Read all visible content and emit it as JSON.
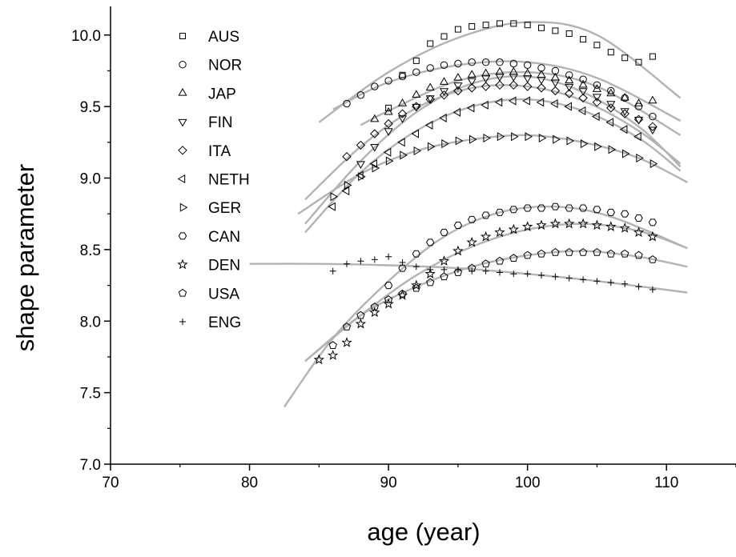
{
  "chart_data": {
    "type": "scatter",
    "title": "",
    "xlabel": "age (year)",
    "ylabel": "shape parameter",
    "xlim": [
      70,
      115
    ],
    "ylim": [
      7.0,
      10.2
    ],
    "xticks": [
      70,
      80,
      90,
      100,
      110
    ],
    "xtick_labels": [
      "70",
      "80",
      "90",
      "100",
      "110"
    ],
    "yticks": [
      7.0,
      7.5,
      8.0,
      8.5,
      9.0,
      9.5,
      10.0
    ],
    "ytick_labels": [
      "7.0",
      "7.5",
      "8.0",
      "8.5",
      "9.0",
      "9.5",
      "10.0"
    ],
    "grid": false,
    "legend_position": "top-left",
    "marker_color": "#000000",
    "fit_line_color": "#b3b3b3",
    "series": [
      {
        "name": "AUS",
        "marker": "square",
        "x": [
          90,
          91,
          92,
          93,
          94,
          95,
          96,
          97,
          98,
          99,
          100,
          101,
          102,
          103,
          104,
          105,
          106,
          107,
          108,
          109
        ],
        "y": [
          9.49,
          9.72,
          9.82,
          9.94,
          9.99,
          10.04,
          10.06,
          10.07,
          10.08,
          10.08,
          10.07,
          10.05,
          10.03,
          10.01,
          9.97,
          9.93,
          9.88,
          9.84,
          9.81,
          9.85
        ],
        "fit": {
          "x": [
            85,
            90,
            95,
            100,
            105,
            111
          ],
          "y": [
            9.39,
            9.74,
            9.98,
            10.09,
            10.0,
            9.56
          ]
        }
      },
      {
        "name": "NOR",
        "marker": "circle",
        "x": [
          87,
          88,
          89,
          90,
          91,
          92,
          93,
          94,
          95,
          96,
          97,
          98,
          99,
          100,
          101,
          102,
          103,
          104,
          105,
          106,
          107,
          108,
          109
        ],
        "y": [
          9.52,
          9.58,
          9.64,
          9.68,
          9.71,
          9.74,
          9.77,
          9.79,
          9.8,
          9.81,
          9.81,
          9.81,
          9.8,
          9.79,
          9.77,
          9.75,
          9.72,
          9.69,
          9.65,
          9.61,
          9.56,
          9.5,
          9.43
        ],
        "fit": {
          "x": [
            86,
            90,
            95,
            100,
            105,
            111
          ],
          "y": [
            9.48,
            9.67,
            9.79,
            9.81,
            9.7,
            9.4
          ]
        }
      },
      {
        "name": "JAP",
        "marker": "triangle-up",
        "x": [
          89,
          90,
          91,
          92,
          93,
          94,
          95,
          96,
          97,
          98,
          99,
          100,
          101,
          102,
          103,
          104,
          105,
          106,
          107,
          108,
          109
        ],
        "y": [
          9.41,
          9.46,
          9.52,
          9.58,
          9.63,
          9.67,
          9.7,
          9.72,
          9.73,
          9.74,
          9.74,
          9.73,
          9.72,
          9.7,
          9.68,
          9.65,
          9.62,
          9.59,
          9.56,
          9.52,
          9.54
        ],
        "fit": {
          "x": [
            88,
            90,
            95,
            100,
            105,
            111
          ],
          "y": [
            9.37,
            9.47,
            9.68,
            9.74,
            9.64,
            9.3
          ]
        }
      },
      {
        "name": "FIN",
        "marker": "triangle-down",
        "x": [
          88,
          89,
          90,
          91,
          92,
          93,
          94,
          95,
          96,
          97,
          98,
          99,
          100,
          101,
          102,
          103,
          104,
          105,
          106,
          107,
          108,
          109
        ],
        "y": [
          9.1,
          9.22,
          9.33,
          9.42,
          9.5,
          9.56,
          9.61,
          9.65,
          9.68,
          9.7,
          9.71,
          9.71,
          9.7,
          9.69,
          9.67,
          9.64,
          9.61,
          9.57,
          9.52,
          9.47,
          9.41,
          9.34
        ],
        "fit": {
          "x": [
            84,
            88,
            92,
            96,
            100,
            104,
            108,
            111
          ],
          "y": [
            8.68,
            9.12,
            9.46,
            9.66,
            9.71,
            9.6,
            9.36,
            9.08
          ]
        }
      },
      {
        "name": "ITA",
        "marker": "diamond",
        "x": [
          87,
          88,
          89,
          90,
          91,
          92,
          93,
          94,
          95,
          96,
          97,
          98,
          99,
          100,
          101,
          102,
          103,
          104,
          105,
          106,
          107,
          108,
          109
        ],
        "y": [
          9.15,
          9.23,
          9.31,
          9.38,
          9.45,
          9.5,
          9.55,
          9.58,
          9.61,
          9.63,
          9.64,
          9.65,
          9.65,
          9.64,
          9.63,
          9.61,
          9.59,
          9.56,
          9.53,
          9.49,
          9.45,
          9.41,
          9.36
        ],
        "fit": {
          "x": [
            84,
            88,
            92,
            96,
            100,
            104,
            108,
            111
          ],
          "y": [
            8.85,
            9.22,
            9.49,
            9.63,
            9.64,
            9.54,
            9.33,
            9.1
          ]
        }
      },
      {
        "name": "NETH",
        "marker": "triangle-left",
        "x": [
          86,
          87,
          88,
          89,
          90,
          91,
          92,
          93,
          94,
          95,
          96,
          97,
          98,
          99,
          100,
          101,
          102,
          103,
          104,
          105,
          106,
          107,
          108
        ],
        "y": [
          8.8,
          8.91,
          9.02,
          9.1,
          9.18,
          9.25,
          9.31,
          9.37,
          9.42,
          9.46,
          9.49,
          9.51,
          9.53,
          9.54,
          9.54,
          9.53,
          9.52,
          9.5,
          9.47,
          9.43,
          9.39,
          9.34,
          9.29
        ],
        "fit": {
          "x": [
            84,
            88,
            92,
            96,
            100,
            104,
            108,
            111
          ],
          "y": [
            8.62,
            9.04,
            9.33,
            9.5,
            9.55,
            9.47,
            9.28,
            9.05
          ]
        }
      },
      {
        "name": "GER",
        "marker": "triangle-right",
        "x": [
          86,
          87,
          88,
          89,
          90,
          91,
          92,
          93,
          94,
          95,
          96,
          97,
          98,
          99,
          100,
          101,
          102,
          103,
          104,
          105,
          106,
          107,
          108,
          109
        ],
        "y": [
          8.87,
          8.95,
          9.01,
          9.07,
          9.12,
          9.16,
          9.19,
          9.22,
          9.24,
          9.26,
          9.27,
          9.28,
          9.29,
          9.29,
          9.29,
          9.28,
          9.27,
          9.26,
          9.24,
          9.22,
          9.2,
          9.17,
          9.14,
          9.1
        ],
        "fit": {
          "x": [
            83.5,
            88,
            92,
            96,
            100,
            104,
            108,
            111.5
          ],
          "y": [
            8.75,
            9.03,
            9.19,
            9.27,
            9.3,
            9.25,
            9.14,
            8.97
          ]
        }
      },
      {
        "name": "CAN",
        "marker": "hexagon",
        "x": [
          90,
          91,
          92,
          93,
          94,
          95,
          96,
          97,
          98,
          99,
          100,
          101,
          102,
          103,
          104,
          105,
          106,
          107,
          108,
          109
        ],
        "y": [
          8.25,
          8.37,
          8.47,
          8.55,
          8.62,
          8.67,
          8.71,
          8.74,
          8.76,
          8.78,
          8.79,
          8.79,
          8.8,
          8.79,
          8.79,
          8.78,
          8.76,
          8.75,
          8.72,
          8.69
        ],
        "fit": {
          "x": [
            82.5,
            86,
            90,
            94,
            98,
            102,
            106,
            111.5
          ],
          "y": [
            7.4,
            7.88,
            8.28,
            8.59,
            8.76,
            8.8,
            8.73,
            8.51
          ]
        }
      },
      {
        "name": "DEN",
        "marker": "star",
        "x": [
          85,
          86,
          87,
          88,
          89,
          90,
          91,
          92,
          93,
          94,
          95,
          96,
          97,
          98,
          99,
          100,
          101,
          102,
          103,
          104,
          105,
          106,
          107,
          108,
          109
        ],
        "y": [
          7.73,
          7.76,
          7.85,
          7.98,
          8.06,
          8.12,
          8.18,
          8.25,
          8.33,
          8.42,
          8.49,
          8.55,
          8.59,
          8.62,
          8.64,
          8.66,
          8.67,
          8.68,
          8.68,
          8.68,
          8.67,
          8.66,
          8.65,
          8.62,
          8.59
        ],
        "fit": {
          "x": [
            84,
            88,
            92,
            96,
            100,
            104,
            108,
            111.5
          ],
          "y": [
            7.72,
            8.04,
            8.32,
            8.52,
            8.64,
            8.68,
            8.63,
            8.51
          ]
        }
      },
      {
        "name": "USA",
        "marker": "pentagon",
        "x": [
          86,
          87,
          88,
          89,
          90,
          91,
          92,
          93,
          94,
          95,
          96,
          97,
          98,
          99,
          100,
          101,
          102,
          103,
          104,
          105,
          106,
          107,
          108,
          109
        ],
        "y": [
          7.83,
          7.96,
          8.04,
          8.1,
          8.15,
          8.19,
          8.23,
          8.27,
          8.31,
          8.34,
          8.37,
          8.4,
          8.42,
          8.44,
          8.46,
          8.47,
          8.48,
          8.48,
          8.48,
          8.48,
          8.47,
          8.47,
          8.46,
          8.43
        ],
        "fit": {
          "x": [
            84,
            88,
            92,
            96,
            100,
            104,
            108,
            111.5
          ],
          "y": [
            7.72,
            8.04,
            8.24,
            8.38,
            8.46,
            8.49,
            8.45,
            8.38
          ]
        }
      },
      {
        "name": "ENG",
        "marker": "plus",
        "x": [
          86,
          87,
          88,
          89,
          90,
          91,
          92,
          93,
          94,
          95,
          96,
          97,
          98,
          99,
          100,
          101,
          102,
          103,
          104,
          105,
          106,
          107,
          108,
          109
        ],
        "y": [
          8.35,
          8.4,
          8.42,
          8.43,
          8.45,
          8.41,
          8.38,
          8.36,
          8.36,
          8.36,
          8.35,
          8.35,
          8.34,
          8.33,
          8.33,
          8.32,
          8.31,
          8.3,
          8.29,
          8.28,
          8.27,
          8.26,
          8.24,
          8.22
        ],
        "fit": {
          "x": [
            80,
            85,
            90,
            95,
            100,
            105,
            111.5
          ],
          "y": [
            8.4,
            8.4,
            8.39,
            8.37,
            8.33,
            8.28,
            8.2
          ]
        }
      }
    ]
  }
}
